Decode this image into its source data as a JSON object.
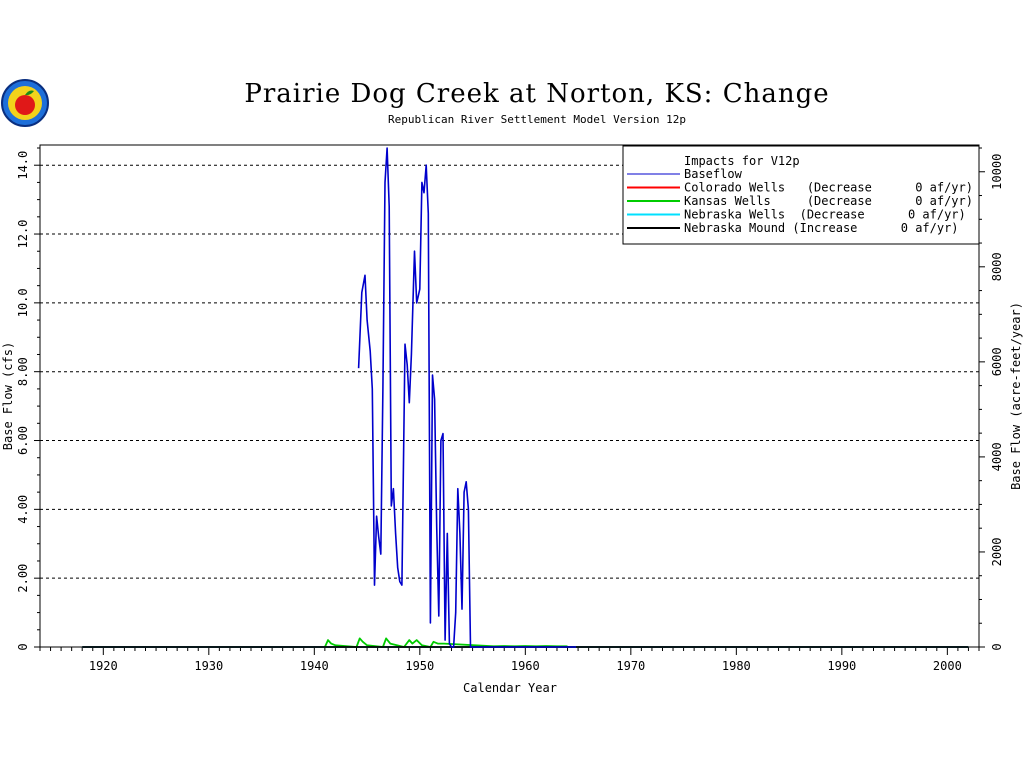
{
  "chart_data": {
    "type": "line",
    "title": "Prairie Dog Creek at Norton, KS: Change",
    "subtitle": "Republican River Settlement Model Version 12p",
    "xlabel": "Calendar Year",
    "ylabel": "Base Flow (cfs)",
    "y2label": "Base Flow (acre-feet/year)",
    "xlim": [
      1914,
      2003
    ],
    "ylim": [
      0,
      14.5
    ],
    "y2lim": [
      0,
      10500
    ],
    "xticks": [
      1920,
      1930,
      1940,
      1950,
      1960,
      1970,
      1980,
      1990,
      2000
    ],
    "xtick_labels": [
      "1920",
      "1930",
      "1940",
      "1950",
      "1960",
      "1970",
      "1980",
      "1990",
      "2000"
    ],
    "yticks": [
      0,
      2,
      4,
      6,
      8,
      10,
      12,
      14
    ],
    "ytick_labels": [
      "0",
      "2.00",
      "4.00",
      "6.00",
      "8.00",
      "10.0",
      "12.0",
      "14.0"
    ],
    "y2ticks": [
      0,
      2000,
      4000,
      6000,
      8000,
      10000
    ],
    "y2tick_labels": [
      "0",
      "2000",
      "4000",
      "6000",
      "8000",
      "10000"
    ],
    "grid": "horizontal dashed",
    "legend_position": "top-right",
    "legend": {
      "title": "Impacts for V12p",
      "entries": [
        {
          "label": "Baseflow",
          "color": "#0000cc"
        },
        {
          "label": "Colorado Wells   (Decrease      0 af/yr)",
          "color": "#ff0000"
        },
        {
          "label": "Kansas Wells     (Decrease      0 af/yr)",
          "color": "#00cc00"
        },
        {
          "label": "Nebraska Wells  (Decrease      0 af/yr)",
          "color": "#00e0ff"
        },
        {
          "label": "Nebraska Mound (Increase      0 af/yr)",
          "color": "#000000"
        }
      ]
    },
    "series": [
      {
        "name": "Baseflow",
        "color": "#0000cc",
        "x": [
          1944.2,
          1944.5,
          1944.8,
          1945.0,
          1945.3,
          1945.5,
          1945.7,
          1945.9,
          1946.1,
          1946.3,
          1946.5,
          1946.7,
          1946.9,
          1947.1,
          1947.3,
          1947.5,
          1947.7,
          1947.9,
          1948.1,
          1948.3,
          1948.6,
          1948.8,
          1949.0,
          1949.2,
          1949.5,
          1949.7,
          1950.0,
          1950.2,
          1950.4,
          1950.6,
          1950.8,
          1951.0,
          1951.2,
          1951.4,
          1951.6,
          1951.8,
          1952.0,
          1952.2,
          1952.4,
          1952.6,
          1952.8,
          1953.0,
          1953.2,
          1953.4,
          1953.6,
          1953.8,
          1954.0,
          1954.2,
          1954.4,
          1954.6,
          1954.8,
          1955.0,
          1955.2,
          1955.4,
          1955.6,
          1955.8,
          1956.0,
          1956.3,
          1956.6,
          1956.9,
          1957.2,
          1957.4,
          1957.6,
          1957.8,
          1958.0,
          1958.2,
          1958.4,
          1958.6,
          1958.8,
          1959.0,
          1959.2,
          1959.4,
          1959.6,
          1959.8,
          1960.0,
          1960.2,
          1960.4,
          1960.6,
          1960.8,
          1961.0,
          1961.2,
          1961.4,
          1961.6,
          1961.8,
          1962.0,
          1962.2,
          1962.4,
          1962.6,
          1962.8,
          1963.0,
          1963.2,
          1963.4,
          1963.6,
          1963.8,
          1964.0,
          1964.2,
          1964.4,
          1964.6,
          1964.8
        ],
        "values": [
          8.1,
          10.3,
          10.8,
          9.5,
          8.6,
          7.5,
          1.8,
          3.8,
          3.2,
          2.7,
          7.5,
          13.5,
          14.5,
          12.8,
          4.1,
          4.6,
          3.3,
          2.3,
          1.9,
          1.8,
          8.8,
          8.2,
          7.1,
          8.5,
          11.5,
          10.0,
          10.4,
          13.5,
          13.2,
          14.0,
          12.6,
          0.7,
          7.9,
          7.2,
          3.5,
          0.9,
          6.0,
          6.2,
          0.2,
          3.3,
          0.1,
          0.0,
          0.0,
          1.0,
          4.6,
          3.3,
          1.1,
          4.5,
          4.8,
          4.0,
          0.0,
          0.0,
          0.0,
          0.0,
          0.0,
          0.0,
          0.0,
          0.0,
          0.0,
          0.0,
          0.0,
          0.0,
          0.0,
          0.0,
          0.0,
          0.0,
          0.0,
          0.0,
          0.0,
          0.0,
          0.0,
          0.0,
          0.0,
          0.0,
          0.0,
          0.0,
          0.0,
          0.0,
          0.0,
          0.0,
          0.0,
          0.0,
          0.0,
          0.0,
          0.0,
          0.0,
          0.0,
          0.0,
          0.0,
          0.0,
          0.0,
          0.0,
          0.0,
          0.0,
          0.0,
          0.0,
          0.0,
          0.0,
          0.0
        ]
      },
      {
        "name": "Kansas Wells     (Decrease      0 af/yr)",
        "color": "#00cc00",
        "x": [
          1941.0,
          1941.3,
          1941.6,
          1942.0,
          1944.0,
          1944.3,
          1944.6,
          1945.0,
          1946.5,
          1946.8,
          1947.2,
          1948.5,
          1949.0,
          1949.3,
          1949.7,
          1950.2,
          1951.0,
          1951.3,
          1951.7,
          1952.3,
          1957.0,
          1958.0,
          1959.0,
          1960.0,
          1961.0,
          1962.0,
          1963.0,
          1964.0
        ],
        "values": [
          0,
          0.2,
          0.1,
          0.05,
          0,
          0.25,
          0.15,
          0.05,
          0,
          0.25,
          0.1,
          0,
          0.2,
          0.1,
          0.2,
          0.05,
          0,
          0.15,
          0.1,
          0.1,
          0.02,
          0.03,
          0.02,
          0.03,
          0.02,
          0.03,
          0.02,
          0.02
        ]
      },
      {
        "name": "Colorado Wells   (Decrease      0 af/yr)",
        "color": "#ff0000",
        "x": [
          1918,
          2002
        ],
        "values": [
          0,
          0
        ]
      },
      {
        "name": "Nebraska Wells  (Decrease      0 af/yr)",
        "color": "#00e0ff",
        "x": [
          1918,
          2002
        ],
        "values": [
          0,
          0
        ]
      },
      {
        "name": "Nebraska Mound (Increase      0 af/yr)",
        "color": "#000000",
        "x": [
          1918,
          2002
        ],
        "values": [
          0,
          0
        ]
      }
    ]
  }
}
